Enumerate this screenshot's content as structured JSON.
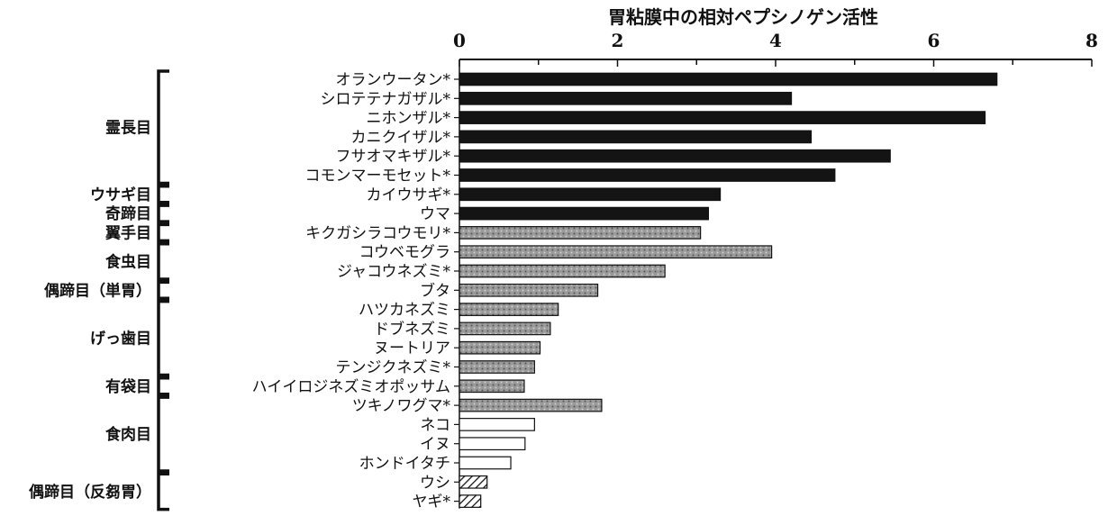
{
  "chart_data": {
    "type": "bar",
    "orientation": "horizontal",
    "title": "",
    "xlabel": "胃粘膜中の相対ペプシノゲン活性",
    "xlim": [
      0,
      8
    ],
    "xticks": [
      0,
      2,
      4,
      6,
      8
    ],
    "categories": [
      "オランウータン*",
      "シロテテナガザル*",
      "ニホンザル*",
      "カニクイザル*",
      "フサオマキザル*",
      "コモンマーモセット*",
      "カイウサギ*",
      "ウマ",
      "キクガシラコウモリ*",
      "コウベモグラ",
      "ジャコウネズミ*",
      "ブタ",
      "ハツカネズミ",
      "ドブネズミ",
      "ヌートリア",
      "テンジクネズミ*",
      "ハイイロジネズミオポッサム",
      "ツキノワグマ*",
      "ネコ",
      "イヌ",
      "ホンドイタチ",
      "ウシ",
      "ヤギ*"
    ],
    "values": [
      6.8,
      4.2,
      6.65,
      4.45,
      5.45,
      4.75,
      3.3,
      3.15,
      3.05,
      3.95,
      2.6,
      1.75,
      1.25,
      1.15,
      1.02,
      0.95,
      0.82,
      1.8,
      0.95,
      0.83,
      0.65,
      0.35,
      0.27
    ],
    "fills": [
      "solid",
      "solid",
      "solid",
      "solid",
      "solid",
      "solid",
      "solid",
      "solid",
      "stippled",
      "stippled",
      "stippled",
      "stippled",
      "stippled",
      "stippled",
      "stippled",
      "stippled",
      "stippled",
      "stippled",
      "white",
      "white",
      "white",
      "hatched",
      "hatched"
    ],
    "groups": [
      {
        "label": "霊長目",
        "start": 0,
        "end": 5
      },
      {
        "label": "ウサギ目",
        "start": 6,
        "end": 6
      },
      {
        "label": "奇蹄目",
        "start": 7,
        "end": 7
      },
      {
        "label": "翼手目",
        "start": 8,
        "end": 8
      },
      {
        "label": "食虫目",
        "start": 9,
        "end": 10
      },
      {
        "label": "偶蹄目（単胃）",
        "start": 11,
        "end": 11
      },
      {
        "label": "げっ歯目",
        "start": 12,
        "end": 15
      },
      {
        "label": "有袋目",
        "start": 16,
        "end": 16
      },
      {
        "label": "食肉目",
        "start": 17,
        "end": 20
      },
      {
        "label": "偶蹄目（反芻胃）",
        "start": 21,
        "end": 22
      }
    ],
    "colors": {
      "solid": "#141414",
      "stippled": "#8c8c8c",
      "white": "#ffffff",
      "hatched": "#ffffff",
      "stroke": "#111111"
    }
  }
}
